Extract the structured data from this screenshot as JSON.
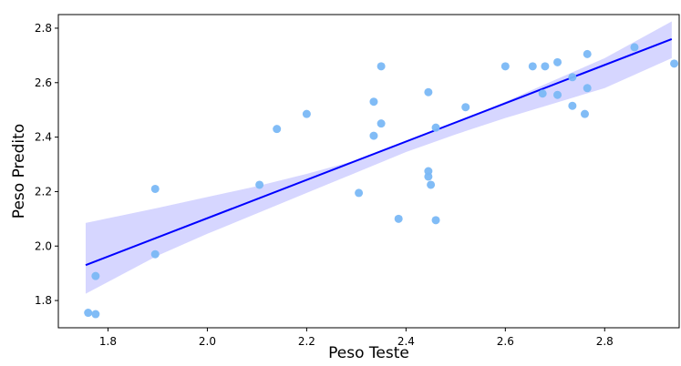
{
  "chart_data": {
    "type": "scatter",
    "xlabel": "Peso Teste",
    "ylabel": "Peso Predito",
    "xlim": [
      1.7,
      2.95
    ],
    "ylim": [
      1.7,
      2.85
    ],
    "x_ticks": [
      1.8,
      2.0,
      2.2,
      2.4,
      2.6,
      2.8
    ],
    "y_ticks": [
      1.8,
      2.0,
      2.2,
      2.4,
      2.6,
      2.8
    ],
    "x_tick_labels": [
      "1.8",
      "2.0",
      "2.2",
      "2.4",
      "2.6",
      "2.8"
    ],
    "y_tick_labels": [
      "1.8",
      "2.0",
      "2.2",
      "2.4",
      "2.6",
      "2.8"
    ],
    "grid": false,
    "colors": {
      "points": "#7ab8f5",
      "line": "#0000ff",
      "band": "#c8c8ff"
    },
    "points": [
      {
        "x": 1.76,
        "y": 1.755
      },
      {
        "x": 1.775,
        "y": 1.75
      },
      {
        "x": 1.775,
        "y": 1.89
      },
      {
        "x": 1.895,
        "y": 2.21
      },
      {
        "x": 1.895,
        "y": 1.97
      },
      {
        "x": 2.105,
        "y": 2.225
      },
      {
        "x": 2.14,
        "y": 2.43
      },
      {
        "x": 2.2,
        "y": 2.485
      },
      {
        "x": 2.305,
        "y": 2.195
      },
      {
        "x": 2.335,
        "y": 2.53
      },
      {
        "x": 2.335,
        "y": 2.405
      },
      {
        "x": 2.35,
        "y": 2.66
      },
      {
        "x": 2.35,
        "y": 2.45
      },
      {
        "x": 2.385,
        "y": 2.1
      },
      {
        "x": 2.445,
        "y": 2.565
      },
      {
        "x": 2.445,
        "y": 2.275
      },
      {
        "x": 2.445,
        "y": 2.255
      },
      {
        "x": 2.45,
        "y": 2.225
      },
      {
        "x": 2.46,
        "y": 2.435
      },
      {
        "x": 2.46,
        "y": 2.095
      },
      {
        "x": 2.52,
        "y": 2.51
      },
      {
        "x": 2.6,
        "y": 2.66
      },
      {
        "x": 2.655,
        "y": 2.66
      },
      {
        "x": 2.675,
        "y": 2.56
      },
      {
        "x": 2.68,
        "y": 2.66
      },
      {
        "x": 2.705,
        "y": 2.675
      },
      {
        "x": 2.705,
        "y": 2.555
      },
      {
        "x": 2.735,
        "y": 2.62
      },
      {
        "x": 2.735,
        "y": 2.515
      },
      {
        "x": 2.76,
        "y": 2.485
      },
      {
        "x": 2.765,
        "y": 2.705
      },
      {
        "x": 2.765,
        "y": 2.58
      },
      {
        "x": 2.86,
        "y": 2.73
      },
      {
        "x": 2.94,
        "y": 2.67
      }
    ],
    "regression_line": {
      "x": [
        1.755,
        2.935
      ],
      "y": [
        1.93,
        2.76
      ]
    },
    "confidence_band": {
      "x": [
        1.755,
        1.9,
        2.0,
        2.1,
        2.2,
        2.3,
        2.4,
        2.5,
        2.6,
        2.7,
        2.8,
        2.935
      ],
      "lower": [
        1.825,
        1.965,
        2.045,
        2.12,
        2.195,
        2.27,
        2.345,
        2.41,
        2.47,
        2.525,
        2.58,
        2.69
      ],
      "upper": [
        2.085,
        2.14,
        2.18,
        2.22,
        2.265,
        2.315,
        2.38,
        2.45,
        2.53,
        2.61,
        2.69,
        2.825
      ]
    }
  }
}
